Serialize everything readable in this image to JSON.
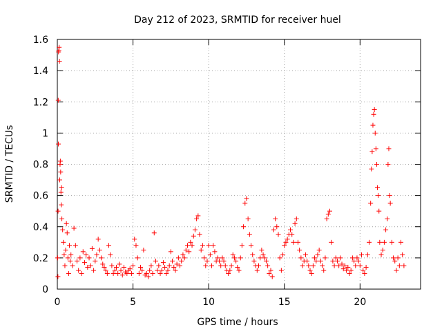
{
  "chart_data": {
    "type": "scatter",
    "title": "Day 212 of 2023, SRMTID for receiver huel",
    "xlabel": "GPS time / hours",
    "ylabel": "SRMTID / TECUs",
    "xlim": [
      0,
      24
    ],
    "ylim": [
      0,
      1.6
    ],
    "xticks": [
      0,
      5,
      10,
      15,
      20
    ],
    "xtick_labels": [
      "0",
      "5",
      "10",
      "15",
      "20"
    ],
    "yticks": [
      0,
      0.2,
      0.4,
      0.6,
      0.8,
      1,
      1.2,
      1.4,
      1.6
    ],
    "ytick_labels": [
      "0",
      "0.2",
      "0.4",
      "0.6",
      "0.8",
      "1",
      "1.2",
      "1.4",
      "1.6"
    ],
    "grid": true,
    "marker": "+",
    "color": "#ff0000",
    "series": [
      {
        "name": "SRMTID",
        "points": [
          [
            0.02,
            0.2
          ],
          [
            0.04,
            0.08
          ],
          [
            0.05,
            0.5
          ],
          [
            0.06,
            1.21
          ],
          [
            0.07,
            0.93
          ],
          [
            0.08,
            1.52
          ],
          [
            0.1,
            1.53
          ],
          [
            0.12,
            1.55
          ],
          [
            0.14,
            1.46
          ],
          [
            0.16,
            0.7
          ],
          [
            0.18,
            0.8
          ],
          [
            0.2,
            0.82
          ],
          [
            0.22,
            0.75
          ],
          [
            0.24,
            0.62
          ],
          [
            0.26,
            0.54
          ],
          [
            0.28,
            0.65
          ],
          [
            0.3,
            0.45
          ],
          [
            0.35,
            0.38
          ],
          [
            0.4,
            0.3
          ],
          [
            0.45,
            0.22
          ],
          [
            0.5,
            0.15
          ],
          [
            0.55,
            0.25
          ],
          [
            0.6,
            0.42
          ],
          [
            0.65,
            0.36
          ],
          [
            0.7,
            0.2
          ],
          [
            0.75,
            0.1
          ],
          [
            0.8,
            0.28
          ],
          [
            0.85,
            0.18
          ],
          [
            0.9,
            0.22
          ],
          [
            1.0,
            0.15
          ],
          [
            1.1,
            0.39
          ],
          [
            1.2,
            0.28
          ],
          [
            1.3,
            0.18
          ],
          [
            1.4,
            0.12
          ],
          [
            1.5,
            0.2
          ],
          [
            1.6,
            0.1
          ],
          [
            1.7,
            0.24
          ],
          [
            1.8,
            0.17
          ],
          [
            1.9,
            0.22
          ],
          [
            2.0,
            0.14
          ],
          [
            2.1,
            0.2
          ],
          [
            2.2,
            0.15
          ],
          [
            2.3,
            0.26
          ],
          [
            2.4,
            0.12
          ],
          [
            2.5,
            0.18
          ],
          [
            2.6,
            0.22
          ],
          [
            2.7,
            0.32
          ],
          [
            2.8,
            0.25
          ],
          [
            2.9,
            0.2
          ],
          [
            3.0,
            0.16
          ],
          [
            3.1,
            0.14
          ],
          [
            3.2,
            0.12
          ],
          [
            3.3,
            0.1
          ],
          [
            3.4,
            0.28
          ],
          [
            3.5,
            0.22
          ],
          [
            3.6,
            0.15
          ],
          [
            3.7,
            0.1
          ],
          [
            3.8,
            0.12
          ],
          [
            3.9,
            0.14
          ],
          [
            4.0,
            0.1
          ],
          [
            4.1,
            0.16
          ],
          [
            4.2,
            0.12
          ],
          [
            4.3,
            0.09
          ],
          [
            4.4,
            0.14
          ],
          [
            4.5,
            0.11
          ],
          [
            4.6,
            0.1
          ],
          [
            4.7,
            0.12
          ],
          [
            4.8,
            0.13
          ],
          [
            4.9,
            0.1
          ],
          [
            5.0,
            0.15
          ],
          [
            5.1,
            0.32
          ],
          [
            5.2,
            0.28
          ],
          [
            5.3,
            0.2
          ],
          [
            5.4,
            0.1
          ],
          [
            5.5,
            0.14
          ],
          [
            5.6,
            0.12
          ],
          [
            5.7,
            0.25
          ],
          [
            5.8,
            0.09
          ],
          [
            5.9,
            0.1
          ],
          [
            6.0,
            0.08
          ],
          [
            6.1,
            0.12
          ],
          [
            6.2,
            0.15
          ],
          [
            6.3,
            0.1
          ],
          [
            6.4,
            0.36
          ],
          [
            6.5,
            0.18
          ],
          [
            6.6,
            0.12
          ],
          [
            6.7,
            0.15
          ],
          [
            6.8,
            0.1
          ],
          [
            6.9,
            0.12
          ],
          [
            7.0,
            0.17
          ],
          [
            7.1,
            0.14
          ],
          [
            7.2,
            0.1
          ],
          [
            7.3,
            0.12
          ],
          [
            7.4,
            0.15
          ],
          [
            7.5,
            0.24
          ],
          [
            7.6,
            0.18
          ],
          [
            7.7,
            0.14
          ],
          [
            7.8,
            0.12
          ],
          [
            7.9,
            0.16
          ],
          [
            8.0,
            0.2
          ],
          [
            8.1,
            0.15
          ],
          [
            8.2,
            0.18
          ],
          [
            8.3,
            0.22
          ],
          [
            8.4,
            0.2
          ],
          [
            8.5,
            0.25
          ],
          [
            8.6,
            0.28
          ],
          [
            8.7,
            0.24
          ],
          [
            8.8,
            0.3
          ],
          [
            8.9,
            0.28
          ],
          [
            9.0,
            0.34
          ],
          [
            9.1,
            0.38
          ],
          [
            9.2,
            0.45
          ],
          [
            9.3,
            0.47
          ],
          [
            9.4,
            0.35
          ],
          [
            9.5,
            0.25
          ],
          [
            9.6,
            0.28
          ],
          [
            9.7,
            0.2
          ],
          [
            9.8,
            0.15
          ],
          [
            9.9,
            0.18
          ],
          [
            10.0,
            0.28
          ],
          [
            10.1,
            0.22
          ],
          [
            10.2,
            0.15
          ],
          [
            10.3,
            0.28
          ],
          [
            10.4,
            0.24
          ],
          [
            10.5,
            0.18
          ],
          [
            10.6,
            0.2
          ],
          [
            10.7,
            0.18
          ],
          [
            10.8,
            0.15
          ],
          [
            10.9,
            0.2
          ],
          [
            11.0,
            0.18
          ],
          [
            11.1,
            0.15
          ],
          [
            11.2,
            0.12
          ],
          [
            11.3,
            0.1
          ],
          [
            11.4,
            0.12
          ],
          [
            11.5,
            0.15
          ],
          [
            11.6,
            0.22
          ],
          [
            11.7,
            0.2
          ],
          [
            11.8,
            0.18
          ],
          [
            11.9,
            0.14
          ],
          [
            12.0,
            0.12
          ],
          [
            12.1,
            0.2
          ],
          [
            12.2,
            0.28
          ],
          [
            12.3,
            0.4
          ],
          [
            12.4,
            0.55
          ],
          [
            12.5,
            0.58
          ],
          [
            12.6,
            0.45
          ],
          [
            12.7,
            0.35
          ],
          [
            12.8,
            0.28
          ],
          [
            12.9,
            0.22
          ],
          [
            13.0,
            0.18
          ],
          [
            13.1,
            0.15
          ],
          [
            13.2,
            0.12
          ],
          [
            13.3,
            0.15
          ],
          [
            13.4,
            0.2
          ],
          [
            13.5,
            0.25
          ],
          [
            13.6,
            0.22
          ],
          [
            13.7,
            0.2
          ],
          [
            13.8,
            0.18
          ],
          [
            13.9,
            0.15
          ],
          [
            14.0,
            0.1
          ],
          [
            14.1,
            0.12
          ],
          [
            14.2,
            0.08
          ],
          [
            14.3,
            0.38
          ],
          [
            14.4,
            0.45
          ],
          [
            14.5,
            0.4
          ],
          [
            14.6,
            0.35
          ],
          [
            14.7,
            0.2
          ],
          [
            14.8,
            0.12
          ],
          [
            14.9,
            0.22
          ],
          [
            15.0,
            0.28
          ],
          [
            15.1,
            0.3
          ],
          [
            15.2,
            0.32
          ],
          [
            15.3,
            0.35
          ],
          [
            15.4,
            0.38
          ],
          [
            15.5,
            0.35
          ],
          [
            15.6,
            0.3
          ],
          [
            15.7,
            0.42
          ],
          [
            15.8,
            0.45
          ],
          [
            15.9,
            0.3
          ],
          [
            16.0,
            0.25
          ],
          [
            16.1,
            0.2
          ],
          [
            16.2,
            0.15
          ],
          [
            16.3,
            0.18
          ],
          [
            16.4,
            0.22
          ],
          [
            16.5,
            0.18
          ],
          [
            16.6,
            0.15
          ],
          [
            16.7,
            0.12
          ],
          [
            16.8,
            0.1
          ],
          [
            16.9,
            0.15
          ],
          [
            17.0,
            0.2
          ],
          [
            17.1,
            0.18
          ],
          [
            17.2,
            0.22
          ],
          [
            17.3,
            0.25
          ],
          [
            17.4,
            0.18
          ],
          [
            17.5,
            0.15
          ],
          [
            17.6,
            0.12
          ],
          [
            17.7,
            0.2
          ],
          [
            17.8,
            0.45
          ],
          [
            17.9,
            0.48
          ],
          [
            18.0,
            0.5
          ],
          [
            18.1,
            0.3
          ],
          [
            18.2,
            0.18
          ],
          [
            18.3,
            0.15
          ],
          [
            18.4,
            0.2
          ],
          [
            18.5,
            0.18
          ],
          [
            18.6,
            0.15
          ],
          [
            18.7,
            0.2
          ],
          [
            18.8,
            0.16
          ],
          [
            18.9,
            0.13
          ],
          [
            19.0,
            0.15
          ],
          [
            19.1,
            0.12
          ],
          [
            19.2,
            0.14
          ],
          [
            19.3,
            0.1
          ],
          [
            19.4,
            0.12
          ],
          [
            19.5,
            0.2
          ],
          [
            19.6,
            0.18
          ],
          [
            19.7,
            0.15
          ],
          [
            19.8,
            0.2
          ],
          [
            19.9,
            0.18
          ],
          [
            20.0,
            0.15
          ],
          [
            20.1,
            0.22
          ],
          [
            20.2,
            0.12
          ],
          [
            20.3,
            0.1
          ],
          [
            20.4,
            0.14
          ],
          [
            20.5,
            0.22
          ],
          [
            20.6,
            0.3
          ],
          [
            20.7,
            0.55
          ],
          [
            20.75,
            0.77
          ],
          [
            20.8,
            0.88
          ],
          [
            20.85,
            1.05
          ],
          [
            20.9,
            1.12
          ],
          [
            20.95,
            1.15
          ],
          [
            21.0,
            1.0
          ],
          [
            21.05,
            0.9
          ],
          [
            21.1,
            0.8
          ],
          [
            21.15,
            0.65
          ],
          [
            21.2,
            0.6
          ],
          [
            21.25,
            0.5
          ],
          [
            21.3,
            0.3
          ],
          [
            21.4,
            0.22
          ],
          [
            21.5,
            0.25
          ],
          [
            21.6,
            0.3
          ],
          [
            21.7,
            0.38
          ],
          [
            21.8,
            0.45
          ],
          [
            21.85,
            0.8
          ],
          [
            21.9,
            0.9
          ],
          [
            21.95,
            0.6
          ],
          [
            22.0,
            0.55
          ],
          [
            22.1,
            0.3
          ],
          [
            22.2,
            0.2
          ],
          [
            22.3,
            0.18
          ],
          [
            22.4,
            0.12
          ],
          [
            22.5,
            0.2
          ],
          [
            22.6,
            0.15
          ],
          [
            22.7,
            0.3
          ],
          [
            22.8,
            0.22
          ],
          [
            22.9,
            0.15
          ]
        ]
      }
    ]
  }
}
